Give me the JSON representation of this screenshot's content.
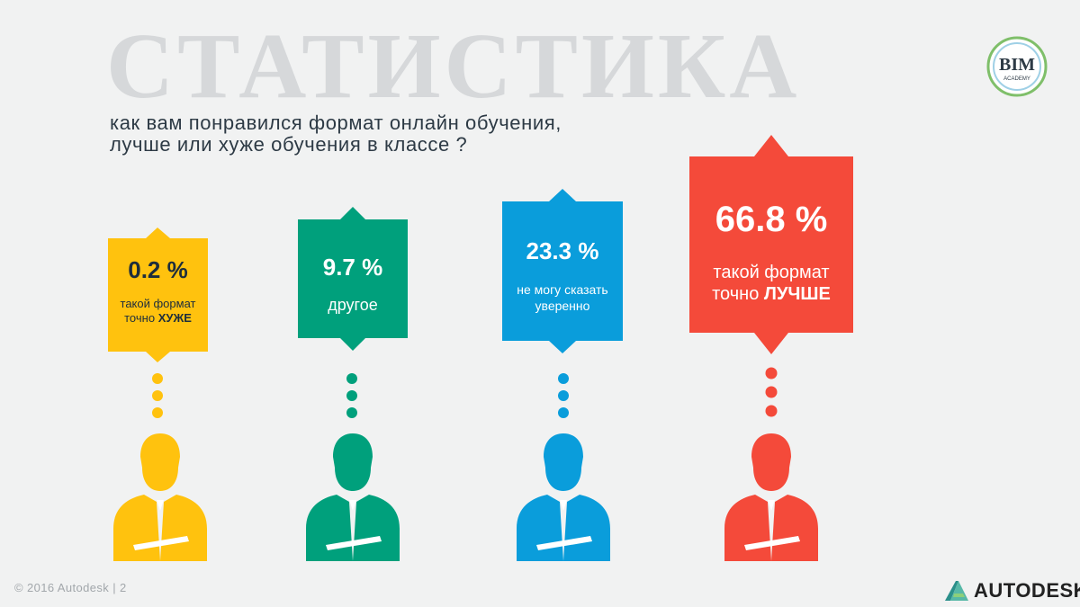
{
  "slide": {
    "title": "СТАТИСТИКА",
    "question_lines": [
      "как вам понравился формат онлайн обучения,",
      "лучше или хуже обучения в классе ?"
    ]
  },
  "logo": {
    "text": "BIM",
    "subtext": "ACADEMY"
  },
  "chart_data": {
    "type": "pictograph",
    "categories": [
      "такой формат точно ХУЖЕ",
      "другое",
      "не могу сказать уверенно",
      "такой формат точно ЛУЧШЕ"
    ],
    "values": [
      0.2,
      9.7,
      23.3,
      66.8
    ],
    "unit": "%",
    "colors": [
      "#ffc20e",
      "#00a07c",
      "#0a9ddb",
      "#f44a3a"
    ]
  },
  "options": [
    {
      "value_text": "0.2 %",
      "label_plain": "такой формат точно",
      "label_strong": "ХУЖЕ",
      "color": "#ffc20e",
      "text_color": "#1d2d3c"
    },
    {
      "value_text": "9.7 %",
      "label_plain": "другое",
      "label_strong": "",
      "color": "#00a07c",
      "text_color": "#ffffff"
    },
    {
      "value_text": "23.3 %",
      "label_plain": "не могу сказать уверенно",
      "label_strong": "",
      "color": "#0a9ddb",
      "text_color": "#ffffff"
    },
    {
      "value_text": "66.8 %",
      "label_plain": "такой формат точно",
      "label_strong": "ЛУЧШЕ",
      "color": "#f44a3a",
      "text_color": "#ffffff"
    }
  ],
  "footer": {
    "copyright": "© 2016 Autodesk | 2",
    "brand": "AUTODESK."
  }
}
